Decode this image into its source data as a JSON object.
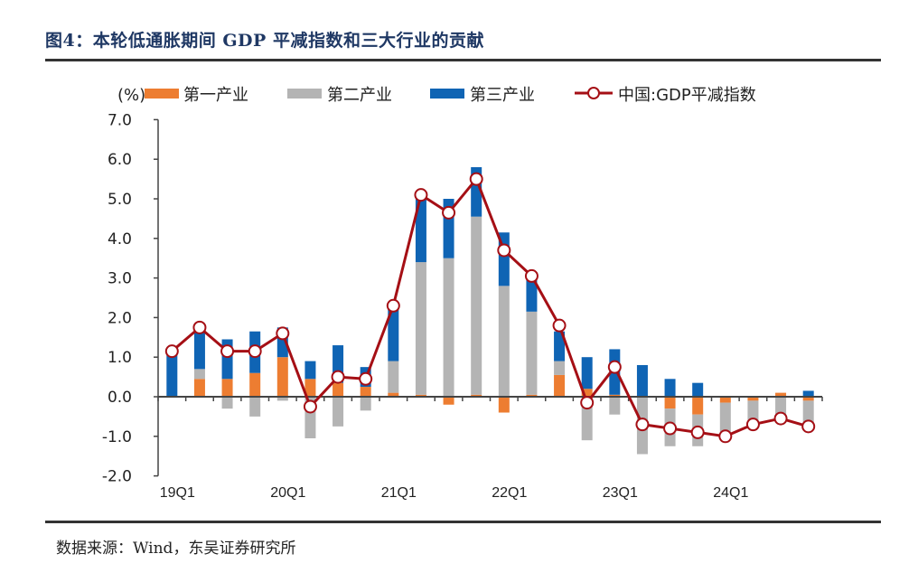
{
  "header": {
    "title": "图4：本轮低通胀期间 GDP 平减指数和三大行业的贡献"
  },
  "footer": {
    "source": "数据来源：Wind，东吴证券研究所"
  },
  "chart_data": {
    "type": "bar",
    "stacked": true,
    "title": "图4：本轮低通胀期间 GDP 平减指数和三大行业的贡献",
    "ylabel": "(%)",
    "xlabel": "",
    "ylim": [
      -2.0,
      7.0
    ],
    "yticks": [
      "7.0",
      "6.0",
      "5.0",
      "4.0",
      "3.0",
      "2.0",
      "1.0",
      "0.0",
      "-1.0",
      "-2.0"
    ],
    "ytick_values": [
      7,
      6,
      5,
      4,
      3,
      2,
      1,
      0,
      -1,
      -2
    ],
    "categories": [
      "19Q1",
      "19Q2",
      "19Q3",
      "19Q4",
      "20Q1",
      "20Q2",
      "20Q3",
      "20Q4",
      "21Q1",
      "21Q2",
      "21Q3",
      "21Q4",
      "22Q1",
      "22Q2",
      "22Q3",
      "22Q4",
      "23Q1",
      "23Q2",
      "23Q3",
      "23Q4",
      "24Q1",
      "24Q2",
      "24Q3",
      "24Q4"
    ],
    "xtick_labels": [
      "19Q1",
      "20Q1",
      "21Q1",
      "22Q1",
      "23Q1",
      "24Q1"
    ],
    "legend_position": "top",
    "grid": false,
    "series": [
      {
        "name": "第一产业",
        "type": "bar",
        "color": "#ed7d31",
        "values": [
          0,
          0.45,
          0.45,
          0.6,
          1.0,
          0.45,
          0.35,
          0.25,
          0.1,
          0.05,
          -0.2,
          0.05,
          -0.4,
          0.05,
          0.55,
          0.2,
          0.05,
          0,
          -0.3,
          -0.45,
          -0.15,
          -0.1,
          0.1,
          -0.1
        ]
      },
      {
        "name": "第二产业",
        "type": "bar",
        "color": "#b4b4b4",
        "values": [
          0,
          0.25,
          -0.3,
          -0.5,
          -0.1,
          -1.05,
          -0.75,
          -0.35,
          0.8,
          3.35,
          3.5,
          4.5,
          2.8,
          2.1,
          0.35,
          -1.1,
          -0.45,
          -1.45,
          -0.95,
          -0.8,
          -0.85,
          -0.65,
          -0.6,
          -0.65
        ]
      },
      {
        "name": "第三产业",
        "type": "bar",
        "color": "#0f64b4",
        "values": [
          1.1,
          1.05,
          1.0,
          1.05,
          0.75,
          0.45,
          0.95,
          0.5,
          1.35,
          1.7,
          1.5,
          1.25,
          1.35,
          0.85,
          0.75,
          0.8,
          1.15,
          0.8,
          0.45,
          0.35,
          0,
          0,
          0,
          0.15
        ]
      },
      {
        "name": "中国:GDP平减指数",
        "type": "line",
        "color": "#a50f15",
        "values": [
          1.15,
          1.75,
          1.15,
          1.15,
          1.6,
          -0.25,
          0.5,
          0.45,
          2.3,
          5.1,
          4.65,
          5.5,
          3.7,
          3.05,
          1.8,
          -0.15,
          0.75,
          -0.7,
          -0.8,
          -0.9,
          -1.0,
          -0.7,
          -0.55,
          -0.75
        ]
      }
    ]
  }
}
